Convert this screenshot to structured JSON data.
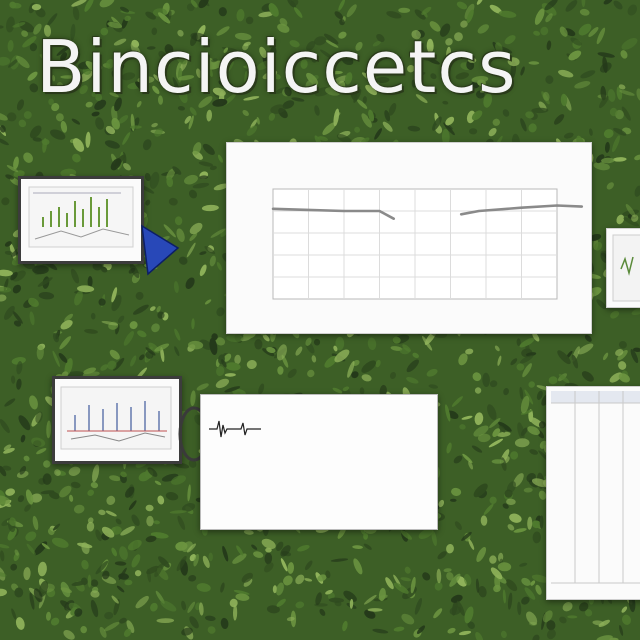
{
  "scene": {
    "title_text": "Bincioiccetcs",
    "background": "hedge-of-leaves",
    "colors": {
      "leaf_dark": "#2f4a1f",
      "leaf_mid": "#4f7a2e",
      "leaf_light": "#8fb25a",
      "pennant": "#2848b8"
    }
  },
  "main_chart": {
    "chart_data": {
      "type": "line",
      "title": "",
      "subtitle": "",
      "xlabel": "",
      "ylabel": "",
      "ylim": [
        0,
        100
      ],
      "x_count": 9,
      "grid": true,
      "series": [
        {
          "segments": [
            {
              "x": [
                0,
                1,
                2,
                3,
                3.4
              ],
              "y": [
                82,
                81,
                80,
                80,
                73
              ]
            },
            {
              "x": [
                5.3,
                5.8,
                7,
                8,
                8.7
              ],
              "y": [
                77,
                80,
                83,
                85,
                84
              ]
            }
          ]
        }
      ],
      "line_color": "#8a8a8a"
    }
  },
  "text_panel": {
    "lines": []
  }
}
